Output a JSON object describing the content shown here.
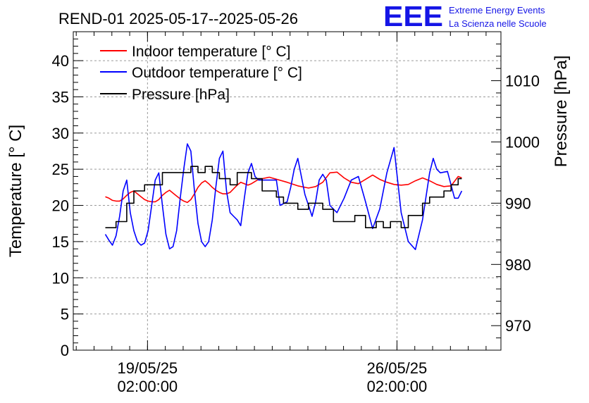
{
  "chart_data": {
    "type": "line",
    "title": "REND-01 2025-05-17--2025-05-26",
    "left_axis_label": "Temperature [° C]",
    "right_axis_label": "Pressure [hPa]",
    "left_ylim": [
      0,
      44
    ],
    "right_ylim": [
      966,
      1018
    ],
    "left_ticks": [
      0,
      5,
      10,
      15,
      20,
      25,
      30,
      35,
      40
    ],
    "right_ticks": [
      970,
      980,
      990,
      1000,
      1010
    ],
    "x_ticks": [
      {
        "line1": "19/05/25",
        "line2": "02:00:00"
      },
      {
        "line1": "26/05/25",
        "line2": "02:00:00"
      }
    ],
    "grid": true,
    "legend_position": "top-left",
    "logo": {
      "mark": "EEE",
      "line1": "Extreme Energy Events",
      "line2": "La Scienza nelle Scuole",
      "color": "#1515e6"
    },
    "x_range_days": [
      16.0,
      28.0
    ],
    "series": [
      {
        "name": "Indoor temperature [° C]",
        "color": "#ff0000",
        "axis": "left",
        "x": [
          16.9,
          17.0,
          17.1,
          17.2,
          17.3,
          17.4,
          17.5,
          17.6,
          17.7,
          17.8,
          17.9,
          18.0,
          18.1,
          18.2,
          18.3,
          18.4,
          18.5,
          18.6,
          18.7,
          18.8,
          18.9,
          19.0,
          19.1,
          19.2,
          19.3,
          19.4,
          19.5,
          19.6,
          19.7,
          19.8,
          19.9,
          20.0,
          20.1,
          20.2,
          20.3,
          20.4,
          20.5,
          20.6,
          20.7,
          20.8,
          20.9,
          21.0,
          21.1,
          21.2,
          21.5,
          22.0,
          22.3,
          22.5,
          22.6,
          22.8,
          23.0,
          23.2,
          23.4,
          23.6,
          23.8,
          24.0,
          24.2,
          24.4,
          24.6,
          24.8,
          25.0,
          25.2,
          25.4,
          25.6,
          25.8,
          26.0,
          26.2,
          26.4,
          26.6,
          26.8,
          26.9
        ],
        "values": [
          21.2,
          21.0,
          20.7,
          20.6,
          20.6,
          20.9,
          21.4,
          21.8,
          22.0,
          21.6,
          21.2,
          20.8,
          20.6,
          20.5,
          20.5,
          20.8,
          21.4,
          21.8,
          22.1,
          21.7,
          21.3,
          20.9,
          20.6,
          20.4,
          20.8,
          21.6,
          22.5,
          23.1,
          23.4,
          23.0,
          22.5,
          22.1,
          21.8,
          21.6,
          21.6,
          21.8,
          22.3,
          22.8,
          23.2,
          23.0,
          22.8,
          23.0,
          23.3,
          23.6,
          23.9,
          23.2,
          22.7,
          22.5,
          22.4,
          22.6,
          23.2,
          24.5,
          24.6,
          23.8,
          23.2,
          23.0,
          23.6,
          24.2,
          23.6,
          23.2,
          22.9,
          22.8,
          22.9,
          23.4,
          23.8,
          23.4,
          22.9,
          22.6,
          22.7,
          24.0,
          23.8
        ]
      },
      {
        "name": "Outdoor temperature [° C]",
        "color": "#0000ff",
        "axis": "left",
        "x": [
          16.9,
          17.0,
          17.1,
          17.2,
          17.3,
          17.4,
          17.5,
          17.6,
          17.7,
          17.8,
          17.9,
          18.0,
          18.1,
          18.2,
          18.3,
          18.4,
          18.5,
          18.6,
          18.7,
          18.8,
          18.9,
          19.0,
          19.1,
          19.2,
          19.3,
          19.4,
          19.5,
          19.6,
          19.7,
          19.8,
          19.9,
          20.0,
          20.1,
          20.2,
          20.3,
          20.4,
          20.5,
          20.6,
          20.7,
          20.8,
          20.9,
          21.0,
          21.1,
          21.2,
          21.5,
          21.7,
          21.8,
          22.0,
          22.1,
          22.2,
          22.3,
          22.5,
          22.6,
          22.7,
          22.8,
          22.9,
          23.0,
          23.1,
          23.2,
          23.4,
          23.6,
          23.8,
          24.0,
          24.2,
          24.4,
          24.6,
          24.8,
          25.0,
          25.2,
          25.4,
          25.6,
          25.8,
          26.0,
          26.1,
          26.2,
          26.3,
          26.5,
          26.7,
          26.8,
          26.9
        ],
        "values": [
          16.0,
          15.2,
          14.5,
          15.8,
          18.5,
          22.0,
          23.5,
          19.0,
          16.5,
          15.0,
          14.5,
          14.8,
          16.5,
          20.0,
          23.5,
          24.5,
          20.0,
          16.0,
          14.0,
          14.3,
          16.5,
          21.0,
          25.0,
          28.5,
          27.5,
          22.0,
          17.5,
          15.0,
          14.3,
          15.0,
          18.0,
          22.5,
          26.5,
          27.5,
          22.0,
          19.0,
          18.5,
          18.0,
          17.2,
          21.0,
          24.5,
          25.8,
          24.0,
          23.5,
          23.5,
          23.5,
          20.0,
          20.5,
          22.5,
          25.0,
          26.5,
          21.5,
          20.0,
          18.5,
          20.5,
          23.5,
          24.3,
          23.5,
          20.0,
          19.0,
          21.0,
          23.5,
          24.0,
          20.5,
          16.8,
          19.5,
          24.5,
          28.0,
          19.0,
          15.0,
          13.9,
          18.0,
          24.5,
          26.5,
          25.0,
          24.5,
          24.7,
          21.0,
          21.0,
          22.0
        ]
      },
      {
        "name": "Pressure [hPa]",
        "color": "#000000",
        "axis": "right",
        "step": true,
        "x": [
          16.9,
          17.2,
          17.5,
          17.7,
          18.0,
          18.5,
          19.0,
          19.3,
          19.5,
          19.7,
          19.9,
          20.1,
          20.4,
          20.6,
          21.0,
          21.3,
          21.7,
          21.9,
          22.1,
          22.3,
          22.4,
          22.6,
          22.8,
          23.0,
          23.3,
          23.6,
          23.9,
          24.2,
          24.5,
          24.7,
          24.9,
          25.2,
          25.4,
          25.6,
          25.8,
          26.0,
          26.2,
          26.4,
          26.6,
          26.8,
          26.9
        ],
        "values": [
          986,
          987,
          990,
          992,
          993,
          995,
          995,
          996,
          995,
          996,
          995,
          994,
          993,
          995,
          994,
          992,
          991,
          990,
          990,
          989,
          989,
          990,
          990,
          989,
          987,
          987,
          988,
          986,
          987,
          986,
          987,
          986,
          988,
          988,
          990,
          991,
          991,
          992,
          993,
          994,
          994
        ]
      }
    ]
  }
}
